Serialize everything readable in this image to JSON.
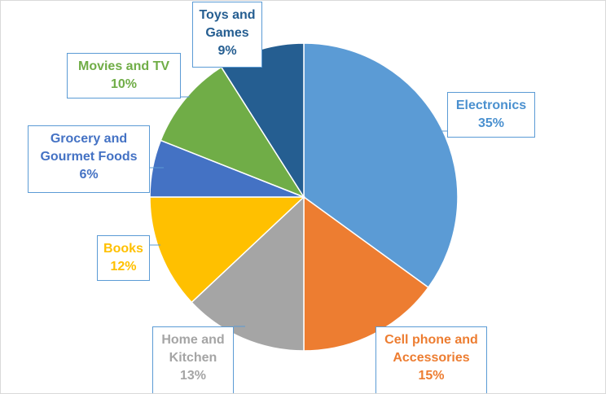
{
  "chart_data": {
    "type": "pie",
    "title": "",
    "slices": [
      {
        "label": "Electronics",
        "value": 35,
        "value_label": "35%",
        "color": "#5b9bd5",
        "text_color": "#4a90cf"
      },
      {
        "label": "Cell phone and Accessories",
        "value": 15,
        "value_label": "15%",
        "color": "#ed7d31",
        "text_color": "#ed7d31"
      },
      {
        "label": "Home and Kitchen",
        "value": 13,
        "value_label": "13%",
        "color": "#a5a5a5",
        "text_color": "#a5a5a5"
      },
      {
        "label": "Books",
        "value": 12,
        "value_label": "12%",
        "color": "#ffc000",
        "text_color": "#ffc000"
      },
      {
        "label": "Grocery and Gourmet Foods",
        "value": 6,
        "value_label": "6%",
        "color": "#4472c4",
        "text_color": "#4472c4"
      },
      {
        "label": "Movies and TV",
        "value": 10,
        "value_label": "10%",
        "color": "#70ad47",
        "text_color": "#70ad47"
      },
      {
        "label": "Toys and Games",
        "value": 9,
        "value_label": "9%",
        "color": "#255e91",
        "text_color": "#255e91"
      }
    ],
    "label_lines": {
      "Electronics": [
        "Electronics"
      ],
      "Cell phone and Accessories": [
        "Cell phone and",
        "Accessories"
      ],
      "Home and Kitchen": [
        "Home and",
        "Kitchen"
      ],
      "Books": [
        "Books"
      ],
      "Grocery and Gourmet Foods": [
        "Grocery and",
        "Gourmet Foods"
      ],
      "Movies and TV": [
        "Movies and TV"
      ],
      "Toys and Games": [
        "Toys and",
        "Games"
      ]
    },
    "legend": "none",
    "data_labels": "callouts"
  }
}
